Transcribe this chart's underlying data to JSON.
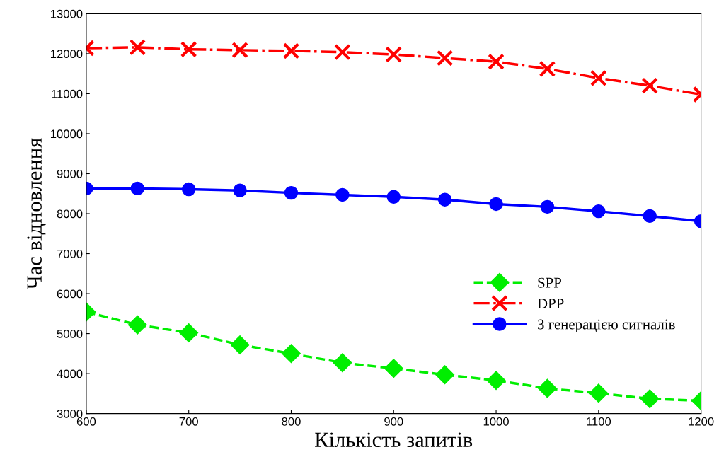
{
  "chart_data": {
    "type": "line",
    "xlabel": "Кількість запитів",
    "ylabel": "Час відновлення",
    "x": [
      600,
      650,
      700,
      750,
      800,
      850,
      900,
      950,
      1000,
      1050,
      1100,
      1150,
      1200
    ],
    "xlim": [
      600,
      1200
    ],
    "xticks": [
      600,
      700,
      800,
      900,
      1000,
      1100,
      1200
    ],
    "ylim": [
      3000,
      13000
    ],
    "yticks": [
      3000,
      4000,
      5000,
      6000,
      7000,
      8000,
      9000,
      10000,
      11000,
      12000,
      13000
    ],
    "grid": false,
    "legend": "lower right",
    "series": [
      {
        "name": "SPP",
        "color": "#00ee00",
        "marker": "diamond",
        "line_style": "dashed",
        "values": [
          5540,
          5220,
          5020,
          4720,
          4500,
          4270,
          4130,
          3970,
          3830,
          3630,
          3510,
          3370,
          3320
        ]
      },
      {
        "name": "DPP",
        "color": "#ff0000",
        "marker": "cross",
        "line_style": "dashdot",
        "values": [
          12140,
          12160,
          12110,
          12090,
          12070,
          12040,
          11980,
          11890,
          11800,
          11620,
          11390,
          11200,
          10980
        ]
      },
      {
        "name": "З генерацією сигналів",
        "color": "#0000ff",
        "marker": "circle",
        "line_style": "solid",
        "values": [
          8630,
          8630,
          8610,
          8580,
          8520,
          8470,
          8420,
          8350,
          8240,
          8170,
          8060,
          7940,
          7810
        ]
      }
    ]
  }
}
